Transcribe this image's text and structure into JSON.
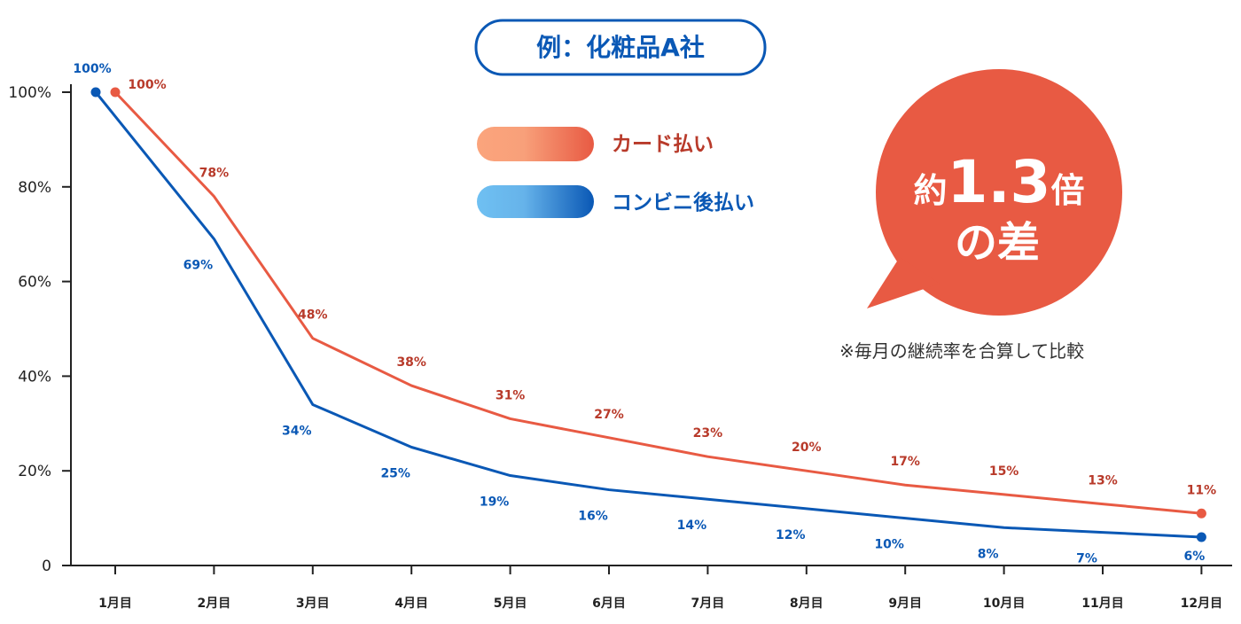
{
  "chart_data": {
    "type": "line",
    "title": "例：化粧品A社",
    "categories": [
      "1月目",
      "2月目",
      "3月目",
      "4月目",
      "5月目",
      "6月目",
      "7月目",
      "8月目",
      "9月目",
      "10月目",
      "11月目",
      "12月目"
    ],
    "y_ticks": [
      "0",
      "20%",
      "40%",
      "60%",
      "80%",
      "100%"
    ],
    "ylim": [
      0,
      100
    ],
    "grid": false,
    "legend_placement": "top-center",
    "series": [
      {
        "name": "カード払い",
        "color": "#e85a43",
        "label_color": "#b83a2a",
        "values": [
          100,
          78,
          48,
          38,
          31,
          27,
          23,
          20,
          17,
          15,
          13,
          11
        ],
        "labels": [
          "100%",
          "78%",
          "48%",
          "38%",
          "31%",
          "27%",
          "23%",
          "20%",
          "17%",
          "15%",
          "13%",
          "11%"
        ]
      },
      {
        "name": "コンビニ後払い",
        "color": "#0a58b5",
        "label_color": "#0a58b5",
        "values": [
          100,
          69,
          34,
          25,
          19,
          16,
          14,
          12,
          10,
          8,
          7,
          6
        ],
        "labels": [
          "100%",
          "69%",
          "34%",
          "25%",
          "19%",
          "16%",
          "14%",
          "12%",
          "10%",
          "8%",
          "7%",
          "6%"
        ]
      }
    ],
    "callout": {
      "prefix": "約",
      "number": "1.3",
      "suffix": "倍",
      "line2": "の差",
      "color": "#e85a43"
    },
    "note": "※毎月の継続率を合算して比較"
  }
}
